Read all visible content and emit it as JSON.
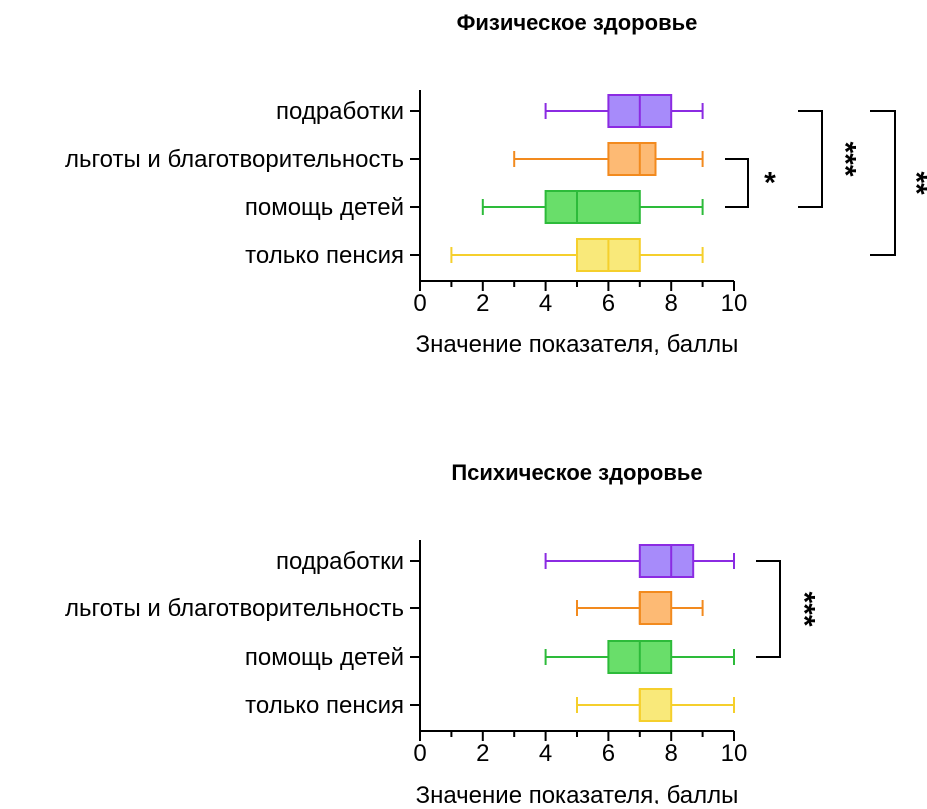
{
  "chart_data": [
    {
      "type": "boxplot",
      "title": "Физическое здоровье",
      "xlabel": "Значение показателя, баллы",
      "xlim": [
        0,
        10
      ],
      "xticks": [
        "0",
        "2",
        "4",
        "6",
        "8",
        "10"
      ],
      "categories": [
        "подработки",
        "льготы и благотворительность",
        "помощь детей",
        "только пенсия"
      ],
      "boxes": [
        {
          "category": "подработки",
          "min": 4,
          "q1": 6,
          "median": 7,
          "q3": 8,
          "max": 9,
          "color": "#8B2BE2",
          "fill": "#A78BFA"
        },
        {
          "category": "льготы и благотворительность",
          "min": 3,
          "q1": 6,
          "median": 7,
          "q3": 7.5,
          "max": 9,
          "color": "#F28A1E",
          "fill": "#FDBA74"
        },
        {
          "category": "помощь детей",
          "min": 2,
          "q1": 4,
          "median": 5,
          "q3": 7,
          "max": 9,
          "color": "#2DBB3A",
          "fill": "#69DE6A"
        },
        {
          "category": "только пенсия",
          "min": 1,
          "q1": 5,
          "median": 6,
          "q3": 7,
          "max": 9,
          "color": "#F5CF2C",
          "fill": "#F9E97A"
        }
      ],
      "significance": [
        {
          "between": [
            "льготы и благотворительность",
            "помощь детей"
          ],
          "label": "*"
        },
        {
          "between": [
            "подработки",
            "помощь детей"
          ],
          "label": "***"
        },
        {
          "between": [
            "подработки",
            "только пенсия"
          ],
          "label": "**"
        }
      ]
    },
    {
      "type": "boxplot",
      "title": "Психическое здоровье",
      "xlabel": "Значение показателя, баллы",
      "xlim": [
        0,
        10
      ],
      "xticks": [
        "0",
        "2",
        "4",
        "6",
        "8",
        "10"
      ],
      "categories": [
        "подработки",
        "льготы и благотворительность",
        "помощь детей",
        "только пенсия"
      ],
      "boxes": [
        {
          "category": "подработки",
          "min": 4,
          "q1": 7,
          "median": 8,
          "q3": 8.7,
          "max": 10,
          "color": "#8B2BE2",
          "fill": "#A78BFA"
        },
        {
          "category": "льготы и благотворительность",
          "min": 5,
          "q1": 7,
          "median": 7,
          "q3": 8,
          "max": 9,
          "color": "#F28A1E",
          "fill": "#FDBA74"
        },
        {
          "category": "помощь детей",
          "min": 4,
          "q1": 6,
          "median": 7,
          "q3": 8,
          "max": 10,
          "color": "#2DBB3A",
          "fill": "#69DE6A"
        },
        {
          "category": "только пенсия",
          "min": 5,
          "q1": 7,
          "median": 7,
          "q3": 8,
          "max": 10,
          "color": "#F5CF2C",
          "fill": "#F9E97A"
        }
      ],
      "significance": [
        {
          "between": [
            "подработки",
            "помощь детей"
          ],
          "label": "***"
        }
      ]
    }
  ]
}
